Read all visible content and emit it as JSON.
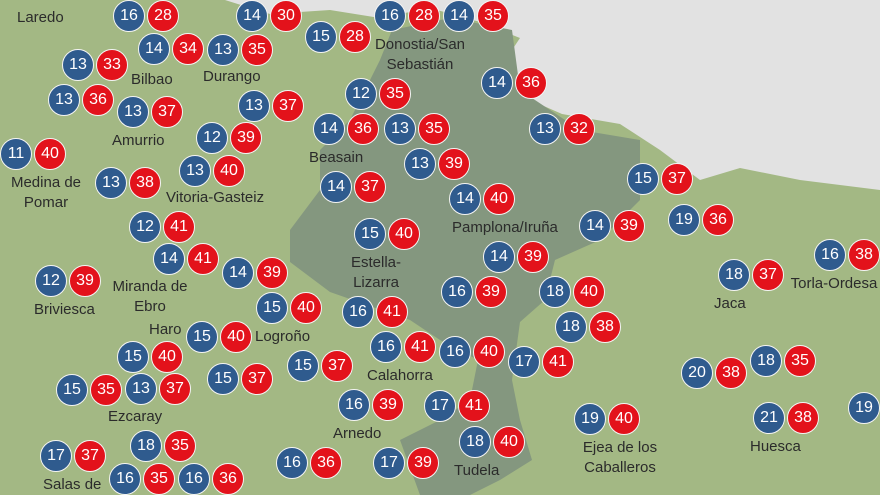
{
  "map": {
    "colors": {
      "min_temp": "#2f5b8e",
      "max_temp": "#e3121b",
      "land": "#a3b884",
      "highlighted_region": "#84977f",
      "sea": "#e2e2e2"
    },
    "stations": [
      {
        "min": 16,
        "max": 28
      },
      {
        "min": 14,
        "max": 34
      },
      {
        "min": 14,
        "max": 30
      },
      {
        "min": 15,
        "max": 28
      },
      {
        "min": 16,
        "max": 28
      },
      {
        "min": 14,
        "max": 35
      },
      {
        "min": 13,
        "max": 33
      },
      {
        "min": 13,
        "max": 35
      },
      {
        "min": 12,
        "max": 35
      },
      {
        "min": 13,
        "max": 35
      },
      {
        "min": 14,
        "max": 36
      },
      {
        "min": 13,
        "max": 36
      },
      {
        "min": 13,
        "max": 37
      },
      {
        "min": 13,
        "max": 37
      },
      {
        "min": 14,
        "max": 36
      },
      {
        "min": 13,
        "max": 32
      },
      {
        "min": 11,
        "max": 40
      },
      {
        "min": 14,
        "max": 37
      },
      {
        "min": 13,
        "max": 39
      },
      {
        "min": 13,
        "max": 38
      },
      {
        "min": 12,
        "max": 39
      },
      {
        "min": 14,
        "max": 40
      },
      {
        "min": 15,
        "max": 37
      },
      {
        "min": 19,
        "max": 36
      },
      {
        "min": 13,
        "max": 40
      },
      {
        "min": 12,
        "max": 41
      },
      {
        "min": 15,
        "max": 40
      },
      {
        "min": 14,
        "max": 39
      },
      {
        "min": 14,
        "max": 39
      },
      {
        "min": 16,
        "max": 38
      },
      {
        "min": 14,
        "max": 41
      },
      {
        "min": 14,
        "max": 39
      },
      {
        "min": 12,
        "max": 39
      },
      {
        "min": 18,
        "max": 40
      },
      {
        "min": 18,
        "max": 37
      },
      {
        "min": 16,
        "max": 39
      },
      {
        "min": 18,
        "max": 38
      },
      {
        "min": 15,
        "max": 40
      },
      {
        "min": 15,
        "max": 40
      },
      {
        "min": 15,
        "max": 40
      },
      {
        "min": 16,
        "max": 41
      },
      {
        "min": 17,
        "max": 41
      },
      {
        "min": 16,
        "max": 40
      },
      {
        "min": 13,
        "max": 37
      },
      {
        "min": 15,
        "max": 35
      },
      {
        "min": 15,
        "max": 37
      },
      {
        "min": 16,
        "max": 41
      },
      {
        "min": 15,
        "max": 37
      },
      {
        "min": 16,
        "max": 39
      },
      {
        "min": 20,
        "max": 38
      },
      {
        "min": 18,
        "max": 35
      },
      {
        "min": 17,
        "max": 41
      },
      {
        "min": 18,
        "max": 35
      },
      {
        "min": 19,
        "max": 40
      },
      {
        "min": 21,
        "max": 38
      },
      {
        "min": 16,
        "max": 36
      },
      {
        "min": 18,
        "max": 40
      },
      {
        "min": 17,
        "max": 37
      },
      {
        "min": 16,
        "max": 35
      },
      {
        "min": 17,
        "max": 39
      },
      {
        "min": 16,
        "max": 36
      },
      {
        "min": 19,
        "max": null
      }
    ],
    "places": [
      "Laredo",
      "Bilbao",
      "Durango",
      "Donostia/San Sebastián",
      "Amurrio",
      "Beasain",
      "Medina de Pomar",
      "Pamplona/Iruña",
      "Vitoria-Gasteiz",
      "Miranda de Ebro",
      "Haro",
      "Estella-Lizarra",
      "Briviesca",
      "Logroño",
      "Ezcaray",
      "Arnedo",
      "Calahorra",
      "Tudela",
      "Ejea de los Caballeros",
      "Jaca",
      "Huesca",
      "Torla-Ordesa",
      "Salas de"
    ]
  }
}
